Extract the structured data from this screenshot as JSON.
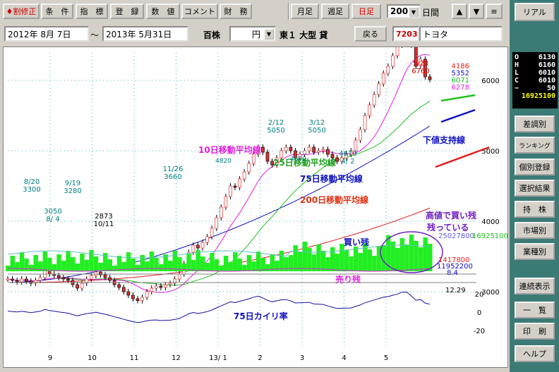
{
  "toolbar": {
    "buttons": [
      "♦割修正",
      "条　件",
      "指　標",
      "登　録",
      "数　値",
      "コメント",
      "財　務"
    ],
    "period_buttons": [
      "月足",
      "週足",
      "日足"
    ],
    "count_value": "200",
    "days_label": "日間",
    "up_arrow": "▲",
    "down_arrow": "▼",
    "menu_icon": "≡"
  },
  "rangebar": {
    "start_date": "2012年 8月 7日",
    "tilde": "～",
    "end_date": "2013年 5月31日",
    "unit": "百株",
    "currency": "円",
    "market": "東１ 大型 貸",
    "back_button": "戻る",
    "code": "7203",
    "name": "トヨタ"
  },
  "sidebar": {
    "real_button": "リアル",
    "ohlc": [
      {
        "k": "O",
        "v": "6130"
      },
      {
        "k": "H",
        "v": "6160"
      },
      {
        "k": "L",
        "v": "6010"
      },
      {
        "k": "C",
        "v": "6010"
      },
      {
        "k": "−",
        "v": "50"
      }
    ],
    "volume": "16925100",
    "buttons": [
      "差調別",
      "ランキング",
      "個別登録",
      "選択結果",
      "持　株",
      "市場別",
      "業種別"
    ],
    "bottom_buttons": [
      "連続表示",
      "一　覧",
      "印　刷",
      "ヘルプ"
    ]
  },
  "chart_data": {
    "type": "line",
    "price": {
      "yticks": [
        "6000",
        "5000",
        "4000",
        "3000"
      ],
      "close": [
        3180,
        3160,
        3140,
        3180,
        3150,
        3120,
        3160,
        3200,
        3300,
        3250,
        3230,
        3200,
        3180,
        3160,
        3100,
        3050,
        3120,
        3180,
        3230,
        3280,
        3240,
        3200,
        3160,
        3100,
        3060,
        3000,
        2950,
        2900,
        2873,
        2920,
        3000,
        3050,
        3080,
        3060,
        3100,
        3120,
        3180,
        3250,
        3400,
        3560,
        3660,
        3620,
        3700,
        3780,
        3900,
        4050,
        4200,
        4350,
        4500,
        4480,
        4600,
        4700,
        4820,
        4950,
        5050,
        4980,
        4850,
        4800,
        4900,
        5000,
        5050,
        5000,
        4900,
        4950,
        5000,
        5050,
        4980,
        5000,
        5020,
        4950,
        4900,
        4850,
        4900,
        4950,
        5000,
        5150,
        5300,
        5500,
        5650,
        5800,
        5950,
        6100,
        6200,
        6350,
        6500,
        6700,
        6760,
        6500,
        6200,
        6300,
        6050,
        6010
      ],
      "highs": [
        {
          "label": "5/23",
          "value": "6760"
        },
        {
          "label": "2/12",
          "value": "5050"
        },
        {
          "label": "3/12",
          "value": "5050"
        },
        {
          "label": "11/26",
          "value": "3660"
        },
        {
          "label": "8/20",
          "value": "3300"
        },
        {
          "label": "9/19",
          "value": "3280"
        }
      ],
      "lows": [
        {
          "label": "10/11",
          "value": "2873"
        },
        {
          "label": "8/ 4",
          "value": "3050"
        },
        {
          "label": "4/ 2",
          "value": "4670"
        }
      ],
      "ma_values": [
        "4186",
        "5352",
        "6071",
        "6278"
      ],
      "labels": {
        "ma10": "10日移動平均線",
        "ma25": "25日移動平均線",
        "ma75": "75日移動平均線",
        "ma200": "200日移動平均線",
        "support": "下値支持線",
        "annot1": "4600",
        "annot2": "4820"
      }
    },
    "margin": {
      "buy_label": "買い残",
      "sell_label": "売り残",
      "values": [
        "25027800",
        "16925100",
        "1417800",
        "11952200",
        "8.4"
      ],
      "note_line1": "高値で買い残",
      "note_line2": "残っている"
    },
    "deviation": {
      "label": "75日カイリ率",
      "value": "12.29",
      "yticks": [
        "20",
        "0",
        "-20"
      ]
    },
    "xticks": [
      "9",
      "10",
      "11",
      "12",
      "13/ 1",
      "2",
      "3",
      "4",
      "5"
    ]
  }
}
